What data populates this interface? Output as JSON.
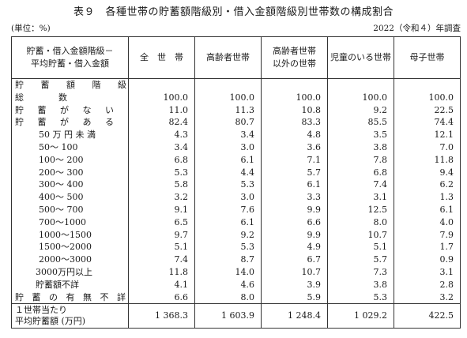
{
  "title": "表９　各種世帯の貯蓄額階級別・借入金額階級別世帯数の構成割合",
  "unit": "(単位：%)",
  "year": "2022（令和４）年調査",
  "header": {
    "row_header_line1": "貯蓄・借入金額階級－",
    "row_header_line2": "平均貯蓄・借入金額",
    "columns": [
      {
        "line1": "全　世　帯",
        "line2": ""
      },
      {
        "line1": "高齢者世帯",
        "line2": ""
      },
      {
        "line1": "高齢者世帯",
        "line2": "以外の世帯"
      },
      {
        "line1": "児童のいる世帯",
        "line2": ""
      },
      {
        "line1": "母子世帯",
        "line2": ""
      }
    ]
  },
  "rows": [
    {
      "label": "貯 蓄 額 階 級",
      "values": [
        "",
        "",
        "",
        "",
        ""
      ]
    },
    {
      "label": "総　　　　数",
      "values": [
        "100.0",
        "100.0",
        "100.0",
        "100.0",
        "100.0"
      ]
    },
    {
      "label": "貯 蓄 が な い",
      "values": [
        "11.0",
        "11.3",
        "10.8",
        "9.2",
        "22.5"
      ]
    },
    {
      "label": "貯 蓄 が あ る",
      "values": [
        "82.4",
        "80.7",
        "83.3",
        "85.5",
        "74.4"
      ]
    },
    {
      "label": "50 万 円 未 満",
      "values": [
        "4.3",
        "3.4",
        "4.8",
        "3.5",
        "12.1"
      ]
    },
    {
      "label": "50～ 100",
      "values": [
        "3.4",
        "3.0",
        "3.6",
        "3.8",
        "7.0"
      ]
    },
    {
      "label": "100～ 200",
      "values": [
        "6.8",
        "6.1",
        "7.1",
        "7.8",
        "11.8"
      ]
    },
    {
      "label": "200～ 300",
      "values": [
        "5.3",
        "4.4",
        "5.7",
        "6.8",
        "9.4"
      ]
    },
    {
      "label": "300～ 400",
      "values": [
        "5.8",
        "5.3",
        "6.1",
        "7.4",
        "6.2"
      ]
    },
    {
      "label": "400～ 500",
      "values": [
        "3.2",
        "3.0",
        "3.3",
        "3.1",
        "1.3"
      ]
    },
    {
      "label": "500～ 700",
      "values": [
        "9.1",
        "7.6",
        "9.9",
        "12.5",
        "6.1"
      ]
    },
    {
      "label": "700～1000",
      "values": [
        "6.5",
        "6.1",
        "6.6",
        "8.0",
        "4.0"
      ]
    },
    {
      "label": "1000～1500",
      "values": [
        "9.7",
        "9.2",
        "9.9",
        "10.7",
        "7.9"
      ]
    },
    {
      "label": "1500～2000",
      "values": [
        "5.1",
        "5.3",
        "4.9",
        "5.1",
        "1.7"
      ]
    },
    {
      "label": "2000～3000",
      "values": [
        "7.4",
        "8.7",
        "6.7",
        "5.7",
        "0.9"
      ]
    },
    {
      "label": "3000万円以上",
      "values": [
        "11.8",
        "14.0",
        "10.7",
        "7.3",
        "3.1"
      ]
    },
    {
      "label": "貯蓄額不詳",
      "values": [
        "4.1",
        "4.6",
        "3.9",
        "3.8",
        "2.8"
      ]
    },
    {
      "label": "貯 蓄 の 有 無 不 詳",
      "values": [
        "6.6",
        "8.0",
        "5.9",
        "5.3",
        "3.2"
      ]
    }
  ],
  "average": {
    "label_line1": "１世帯当たり",
    "label_line2": "平均貯蓄額 (万円)",
    "values": [
      "1 368.3",
      "1 603.9",
      "1 248.4",
      "1 029.2",
      "422.5"
    ]
  }
}
